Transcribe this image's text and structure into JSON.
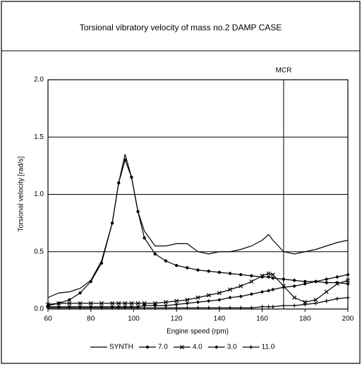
{
  "chart_data": {
    "type": "line",
    "title": "Torsional vibratory velocity of mass no.2 DAMP CASE",
    "xlabel": "Engine speed (rpm)",
    "ylabel": "Torsional velocity [rad/s]",
    "x": [
      60,
      65,
      70,
      75,
      80,
      85,
      90,
      93,
      96,
      99,
      102,
      105,
      110,
      115,
      120,
      125,
      130,
      135,
      140,
      145,
      150,
      155,
      160,
      163,
      165,
      170,
      175,
      180,
      185,
      190,
      195,
      200
    ],
    "series": [
      {
        "name": "SYNTH",
        "color": "#000000",
        "marker": "none",
        "values": [
          0.1,
          0.14,
          0.15,
          0.18,
          0.25,
          0.42,
          0.75,
          1.1,
          1.35,
          1.15,
          0.85,
          0.68,
          0.55,
          0.55,
          0.57,
          0.57,
          0.5,
          0.48,
          0.5,
          0.5,
          0.52,
          0.55,
          0.6,
          0.65,
          0.6,
          0.5,
          0.48,
          0.5,
          0.52,
          0.55,
          0.58,
          0.6
        ]
      },
      {
        "name": "7.0",
        "color": "#000000",
        "marker": "circle",
        "values": [
          0.03,
          0.05,
          0.08,
          0.14,
          0.24,
          0.4,
          0.75,
          1.1,
          1.3,
          1.15,
          0.85,
          0.62,
          0.48,
          0.42,
          0.38,
          0.36,
          0.34,
          0.33,
          0.32,
          0.31,
          0.3,
          0.29,
          0.28,
          0.28,
          0.27,
          0.26,
          0.25,
          0.24,
          0.24,
          0.23,
          0.23,
          0.22
        ]
      },
      {
        "name": "4.0",
        "color": "#000000",
        "marker": "cross",
        "values": [
          0.04,
          0.05,
          0.05,
          0.05,
          0.05,
          0.05,
          0.05,
          0.05,
          0.05,
          0.05,
          0.05,
          0.05,
          0.05,
          0.06,
          0.07,
          0.08,
          0.1,
          0.12,
          0.14,
          0.17,
          0.2,
          0.24,
          0.29,
          0.31,
          0.3,
          0.2,
          0.1,
          0.06,
          0.08,
          0.15,
          0.22,
          0.25
        ]
      },
      {
        "name": "3.0",
        "color": "#000000",
        "marker": "diamond",
        "values": [
          0.02,
          0.02,
          0.02,
          0.02,
          0.02,
          0.02,
          0.02,
          0.02,
          0.02,
          0.02,
          0.02,
          0.03,
          0.03,
          0.03,
          0.04,
          0.05,
          0.06,
          0.07,
          0.08,
          0.1,
          0.11,
          0.13,
          0.15,
          0.16,
          0.17,
          0.19,
          0.2,
          0.22,
          0.24,
          0.26,
          0.28,
          0.3
        ]
      },
      {
        "name": "11.0",
        "color": "#000000",
        "marker": "plus",
        "values": [
          0.01,
          0.01,
          0.01,
          0.01,
          0.01,
          0.01,
          0.01,
          0.01,
          0.01,
          0.01,
          0.01,
          0.01,
          0.01,
          0.01,
          0.01,
          0.01,
          0.01,
          0.01,
          0.01,
          0.01,
          0.01,
          0.01,
          0.02,
          0.02,
          0.02,
          0.03,
          0.03,
          0.04,
          0.05,
          0.07,
          0.09,
          0.1
        ]
      }
    ],
    "xlim": [
      60,
      200
    ],
    "ylim": [
      0,
      2
    ],
    "xticks": [
      60,
      80,
      100,
      120,
      140,
      160,
      180,
      200
    ],
    "yticks": [
      {
        "value": 0,
        "label": "0.0"
      },
      0.5,
      {
        "value": 1,
        "label": "1.0"
      },
      1.5,
      {
        "value": 2,
        "label": "2.0"
      }
    ],
    "grid": true,
    "legend": "bottom",
    "annotations": [
      {
        "text": "MCR",
        "x": 170
      }
    ]
  }
}
